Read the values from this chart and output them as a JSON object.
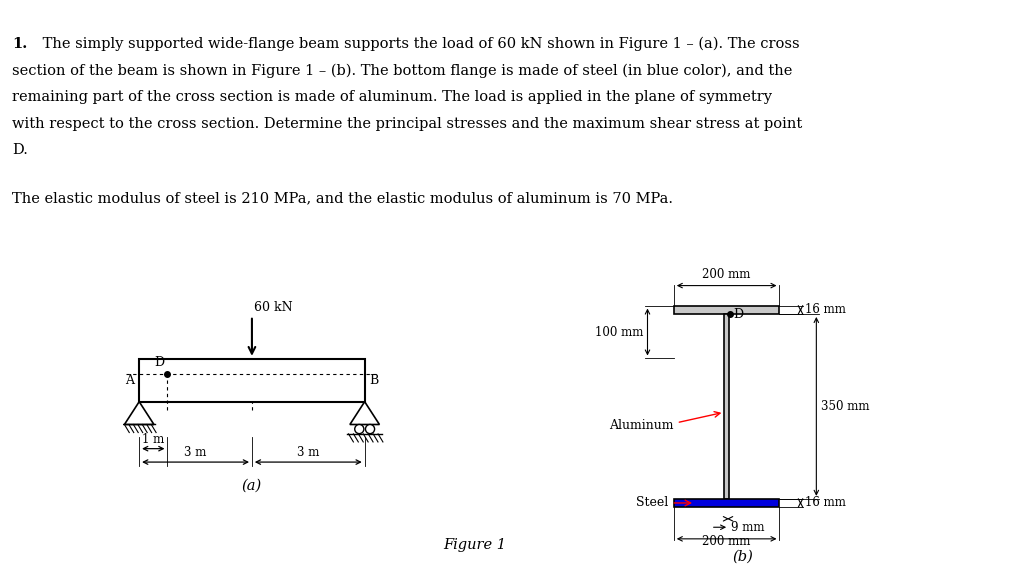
{
  "line1_bold": "1.",
  "line1_rest": " The simply supported wide-flange beam supports the load of 60 kN shown in Figure 1 – (a). The cross",
  "line2": "section of the beam is shown in Figure 1 – (b). The bottom flange is made of steel (in blue color), and the",
  "line3": "remaining part of the cross section is made of aluminum. The load is applied in the plane of symmetry",
  "line4": "with respect to the cross section. Determine the principal stresses and the maximum shear stress at point",
  "line5": "D.",
  "line6": "The elastic modulus of steel is 210 MPa, and the elastic modulus of aluminum is 70 MPa.",
  "fig_label": "Figure 1",
  "label_a": "(a)",
  "label_b": "(b)",
  "steel_color": "#0000dd",
  "alum_color": "#c8c8c8",
  "bg_color": "#ffffff",
  "load_label": "60 kN",
  "dim_1m": "1 m",
  "dim_3m_left": "3 m",
  "dim_3m_right": "3 m",
  "label_A": "A",
  "label_B": "B",
  "label_D_beam": "D",
  "label_D_section": "D",
  "label_Aluminum": "Aluminum",
  "label_Steel": "Steel",
  "dim_200mm_top": "200 mm",
  "dim_16mm_top": "16 mm",
  "dim_100mm": "100 mm",
  "dim_350mm": "350 mm",
  "dim_9mm": "9 mm",
  "dim_200mm_bot": "200 mm",
  "dim_16mm_bot": "16 mm",
  "fontsize_text": 10.5,
  "fontsize_small": 9.0,
  "fontsize_dim": 8.5
}
